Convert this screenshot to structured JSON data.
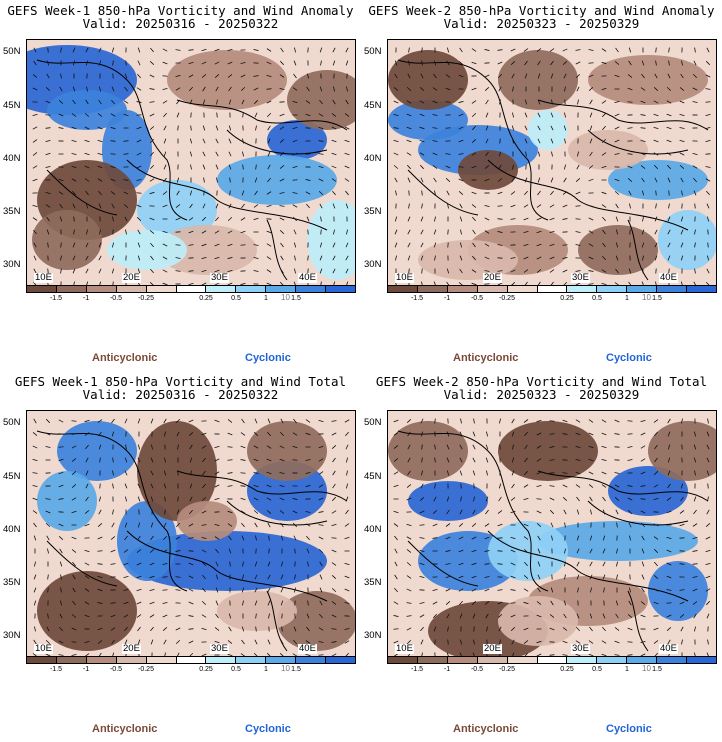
{
  "colors": {
    "scale": [
      "#6e4a3c",
      "#8f6b5c",
      "#b58c7d",
      "#d9b9ab",
      "#f0d9ce",
      "#ffffff",
      "#bdeefa",
      "#8fd0f6",
      "#5aa9e8",
      "#3c82dc",
      "#2a66d4"
    ],
    "land_base": "#f0d9ce",
    "anticyclonic_text": "#7a4a3a",
    "cyclonic_text": "#1f64d8"
  },
  "colorbar": {
    "tick_labels": [
      "-1.5",
      "-1",
      "-0.5",
      "-0.25",
      "0.25",
      "0.5",
      "1",
      "1.5"
    ],
    "unit_label": "10"
  },
  "axes": {
    "lat_labels": [
      "50N",
      "45N",
      "40N",
      "35N",
      "30N"
    ],
    "lon_labels": [
      "10E",
      "20E",
      "30E",
      "40E"
    ]
  },
  "legend_words": {
    "anticyclonic": "Anticyclonic",
    "cyclonic": "Cyclonic"
  },
  "panels": [
    {
      "line1": "GEFS Week-1 850-hPa Vorticity and Wind Anomaly",
      "line2": "Valid: 20250316 - 20250322"
    },
    {
      "line1": "GEFS Week-2 850-hPa Vorticity and Wind Anomaly",
      "line2": "Valid: 20250323 - 20250329"
    },
    {
      "line1": "GEFS Week-1 850-hPa Vorticity and Wind Total",
      "line2": "Valid: 20250316 - 20250322"
    },
    {
      "line1": "GEFS Week-2 850-hPa Vorticity and Wind Total",
      "line2": "Valid: 20250323 - 20250329"
    }
  ],
  "chart_data": [
    {
      "type": "heatmap",
      "title": "GEFS Week-1 850-hPa Vorticity and Wind Anomaly",
      "xlim": [
        8,
        46
      ],
      "ylim": [
        28.5,
        51.5
      ],
      "color_levels": [
        -1.5,
        -1,
        -0.5,
        -0.25,
        0.25,
        0.5,
        1,
        1.5
      ]
    },
    {
      "type": "heatmap",
      "title": "GEFS Week-2 850-hPa Vorticity and Wind Anomaly",
      "xlim": [
        8,
        46
      ],
      "ylim": [
        28.5,
        51.5
      ],
      "color_levels": [
        -1.5,
        -1,
        -0.5,
        -0.25,
        0.25,
        0.5,
        1,
        1.5
      ]
    },
    {
      "type": "heatmap",
      "title": "GEFS Week-1 850-hPa Vorticity and Wind Total",
      "xlim": [
        8,
        46
      ],
      "ylim": [
        28.5,
        51.5
      ],
      "color_levels": [
        -1.5,
        -1,
        -0.5,
        -0.25,
        0.25,
        0.5,
        1,
        1.5
      ]
    },
    {
      "type": "heatmap",
      "title": "GEFS Week-2 850-hPa Vorticity and Wind Total",
      "xlim": [
        8,
        46
      ],
      "ylim": [
        28.5,
        51.5
      ],
      "color_levels": [
        -1.5,
        -1,
        -0.5,
        -0.25,
        0.25,
        0.5,
        1,
        1.5
      ]
    }
  ]
}
